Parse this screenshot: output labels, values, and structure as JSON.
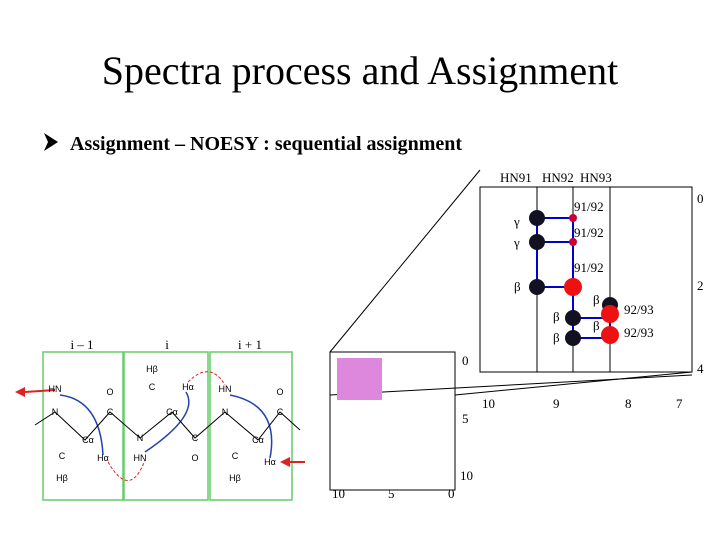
{
  "title": "Spectra process and Assignment",
  "bullet": "Assignment – NOESY : sequential assignment",
  "spectrum": {
    "columns": [
      "HN91",
      "HN92",
      "HN93"
    ],
    "y_ticks": [
      "0",
      "2",
      "4"
    ],
    "x_ticks": [
      "10",
      "9",
      "8",
      "7"
    ],
    "peak_labels": [
      "γ",
      "γ",
      "β",
      "β",
      "β",
      "β",
      "β"
    ],
    "cross_labels": [
      "91/92",
      "91/92",
      "91/92",
      "92/93",
      "92/93"
    ]
  },
  "overview": {
    "y_ticks": [
      "0",
      "5",
      "10"
    ],
    "x_ticks": [
      "10",
      "5",
      "0"
    ]
  },
  "residues": [
    {
      "header": "i – 1",
      "atoms": [
        "HN",
        "N",
        "C",
        "O",
        "Cα",
        "C",
        "Hβ",
        "Hα"
      ]
    },
    {
      "header": "i",
      "atoms": [
        "Hβ",
        "C",
        "Hα",
        "Cα",
        "N",
        "C",
        "O",
        "HN"
      ]
    },
    {
      "header": "i + 1",
      "atoms": [
        "HN",
        "N",
        "C",
        "O",
        "Cα",
        "C",
        "Hβ",
        "Hα"
      ]
    }
  ]
}
